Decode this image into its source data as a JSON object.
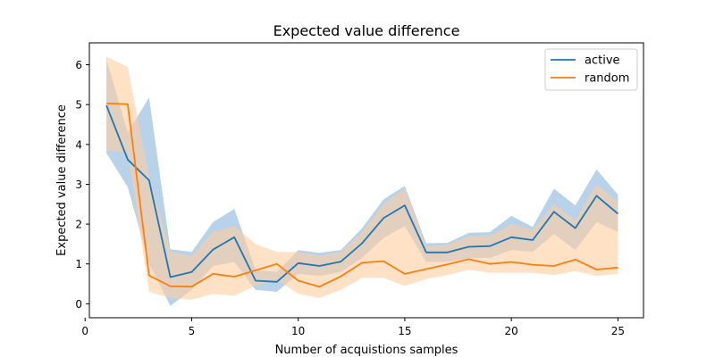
{
  "chart_data": {
    "type": "line",
    "title": "Expected value difference",
    "xlabel": "Number of acquistions samples",
    "ylabel": "Expected value difference",
    "xlim": [
      0.2,
      26.2
    ],
    "ylim": [
      -0.35,
      6.55
    ],
    "xticks": [
      0,
      5,
      10,
      15,
      20,
      25
    ],
    "yticks": [
      0,
      1,
      2,
      3,
      4,
      5,
      6
    ],
    "grid": false,
    "legend": "top-right",
    "x": [
      1,
      2,
      3,
      4,
      5,
      6,
      7,
      8,
      9,
      10,
      11,
      12,
      13,
      14,
      15,
      16,
      17,
      18,
      19,
      20,
      21,
      22,
      23,
      24,
      25
    ],
    "series": [
      {
        "name": "active",
        "color": "#1f77b4",
        "band_color": "#a6c8e3",
        "values": [
          4.98,
          3.62,
          3.1,
          0.67,
          0.8,
          1.36,
          1.67,
          0.58,
          0.55,
          1.02,
          0.95,
          1.06,
          1.52,
          2.15,
          2.47,
          1.29,
          1.29,
          1.43,
          1.45,
          1.67,
          1.6,
          2.31,
          1.9,
          2.71,
          2.26
        ],
        "lower": [
          3.78,
          2.93,
          1.0,
          -0.05,
          0.35,
          0.95,
          1.05,
          0.35,
          0.3,
          0.75,
          0.7,
          0.8,
          1.15,
          1.65,
          1.95,
          1.05,
          1.05,
          1.15,
          1.15,
          1.35,
          1.3,
          1.75,
          1.35,
          2.05,
          1.8
        ],
        "upper": [
          6.15,
          4.3,
          5.18,
          1.37,
          1.3,
          2.05,
          2.38,
          0.85,
          0.8,
          1.35,
          1.28,
          1.35,
          1.9,
          2.62,
          2.96,
          1.52,
          1.53,
          1.78,
          1.8,
          2.21,
          1.93,
          2.89,
          2.47,
          3.37,
          2.74
        ]
      },
      {
        "name": "random",
        "color": "#ff7f0e",
        "band_color": "#ffcda0",
        "values": [
          5.03,
          5.01,
          0.71,
          0.44,
          0.43,
          0.75,
          0.68,
          0.84,
          1.0,
          0.58,
          0.43,
          0.69,
          1.03,
          1.07,
          0.75,
          0.87,
          0.99,
          1.12,
          1.0,
          1.05,
          0.98,
          0.95,
          1.11,
          0.86,
          0.91
        ],
        "lower": [
          3.85,
          3.8,
          0.3,
          0.15,
          0.1,
          0.25,
          0.2,
          0.45,
          0.6,
          0.25,
          0.15,
          0.35,
          0.65,
          0.65,
          0.45,
          0.62,
          0.72,
          0.85,
          0.78,
          0.78,
          0.78,
          0.72,
          0.82,
          0.7,
          0.75
        ],
        "upper": [
          6.2,
          5.95,
          3.2,
          1.3,
          1.2,
          1.8,
          1.95,
          1.5,
          1.3,
          1.3,
          1.2,
          1.3,
          1.8,
          2.5,
          2.9,
          1.45,
          1.48,
          1.7,
          1.7,
          2.0,
          1.85,
          2.5,
          2.1,
          3.0,
          2.55
        ]
      }
    ]
  }
}
